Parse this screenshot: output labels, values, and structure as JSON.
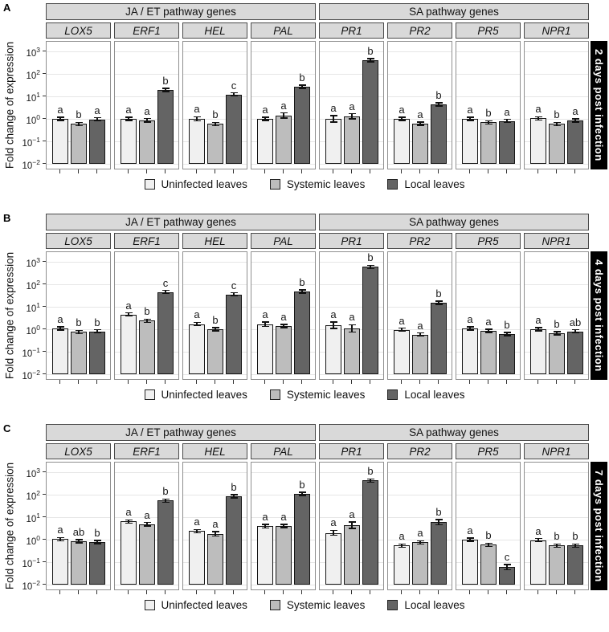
{
  "chart_data": {
    "type": "bar",
    "yscale": "log",
    "ylim": [
      0.01,
      3000
    ],
    "ylabel": "Fold change of expression",
    "ytick_exponents": [
      3,
      2,
      1,
      0,
      -1,
      -2
    ],
    "grid": true,
    "legend_position": "bottom",
    "series": [
      {
        "name": "Uninfected leaves",
        "color": "#f0f0f0"
      },
      {
        "name": "Systemic leaves",
        "color": "#bdbdbd"
      },
      {
        "name": "Local leaves",
        "color": "#646464"
      }
    ],
    "gene_groups": [
      {
        "label": "JA / ET pathway genes",
        "genes": [
          "LOX5",
          "ERF1",
          "HEL",
          "PAL"
        ]
      },
      {
        "label": "SA pathway genes",
        "genes": [
          "PR1",
          "PR2",
          "PR5",
          "NPR1"
        ]
      }
    ],
    "panels": [
      {
        "label": "A",
        "strip": "2 days post infection",
        "facets": [
          {
            "gene": "LOX5",
            "values": [
              1.0,
              0.6,
              0.95
            ],
            "errors": [
              1.05,
              1.05,
              1.05
            ],
            "letters": [
              "a",
              "b",
              "a"
            ]
          },
          {
            "gene": "ERF1",
            "values": [
              1.0,
              0.85,
              19
            ],
            "errors": [
              1.15,
              1.2,
              1.08
            ],
            "letters": [
              "a",
              "a",
              "b"
            ]
          },
          {
            "gene": "HEL",
            "values": [
              1.0,
              0.6,
              12
            ],
            "errors": [
              1.25,
              1.15,
              1.08
            ],
            "letters": [
              "a",
              "b",
              "c"
            ]
          },
          {
            "gene": "PAL",
            "values": [
              1.0,
              1.4,
              27
            ],
            "errors": [
              1.15,
              1.3,
              1.08
            ],
            "letters": [
              "a",
              "a",
              "b"
            ]
          },
          {
            "gene": "PR1",
            "values": [
              1.0,
              1.3,
              400
            ],
            "errors": [
              1.4,
              1.3,
              1.12
            ],
            "letters": [
              "a",
              "a",
              "b"
            ]
          },
          {
            "gene": "PR2",
            "values": [
              1.0,
              0.62,
              4.4
            ],
            "errors": [
              1.08,
              1.1,
              1.15
            ],
            "letters": [
              "a",
              "a",
              "b"
            ]
          },
          {
            "gene": "PR5",
            "values": [
              1.0,
              0.7,
              0.8
            ],
            "errors": [
              1.05,
              1.05,
              1.05
            ],
            "letters": [
              "a",
              "b",
              "a"
            ]
          },
          {
            "gene": "NPR1",
            "values": [
              1.05,
              0.6,
              0.85
            ],
            "errors": [
              1.06,
              1.05,
              1.05
            ],
            "letters": [
              "a",
              "b",
              "a"
            ]
          }
        ]
      },
      {
        "label": "B",
        "strip": "4 days post infection",
        "facets": [
          {
            "gene": "LOX5",
            "values": [
              1.1,
              0.75,
              0.8
            ],
            "errors": [
              1.06,
              1.06,
              1.05
            ],
            "letters": [
              "a",
              "b",
              "b"
            ]
          },
          {
            "gene": "ERF1",
            "values": [
              4.5,
              2.4,
              45
            ],
            "errors": [
              1.18,
              1.18,
              1.15
            ],
            "letters": [
              "a",
              "b",
              "c"
            ]
          },
          {
            "gene": "HEL",
            "values": [
              1.7,
              1.0,
              35
            ],
            "errors": [
              1.2,
              1.1,
              1.12
            ],
            "letters": [
              "a",
              "b",
              "c"
            ]
          },
          {
            "gene": "PAL",
            "values": [
              1.7,
              1.4,
              47
            ],
            "errors": [
              1.25,
              1.18,
              1.15
            ],
            "letters": [
              "a",
              "a",
              "b"
            ]
          },
          {
            "gene": "PR1",
            "values": [
              1.5,
              1.1,
              600
            ],
            "errors": [
              1.4,
              1.45,
              1.15
            ],
            "letters": [
              "a",
              "a",
              "b"
            ]
          },
          {
            "gene": "PR2",
            "values": [
              0.95,
              0.58,
              15
            ],
            "errors": [
              1.08,
              1.15,
              1.18
            ],
            "letters": [
              "a",
              "a",
              "b"
            ]
          },
          {
            "gene": "PR5",
            "values": [
              1.1,
              0.85,
              0.62
            ],
            "errors": [
              1.05,
              1.06,
              1.08
            ],
            "letters": [
              "a",
              "a",
              "b"
            ]
          },
          {
            "gene": "NPR1",
            "values": [
              1.0,
              0.67,
              0.8
            ],
            "errors": [
              1.05,
              1.07,
              1.05
            ],
            "letters": [
              "a",
              "b",
              "ab"
            ]
          }
        ]
      },
      {
        "label": "C",
        "strip": "7 days post infection",
        "facets": [
          {
            "gene": "LOX5",
            "values": [
              1.05,
              0.85,
              0.78
            ],
            "errors": [
              1.06,
              1.08,
              1.06
            ],
            "letters": [
              "a",
              "ab",
              "b"
            ]
          },
          {
            "gene": "ERF1",
            "values": [
              6.4,
              4.8,
              54
            ],
            "errors": [
              1.15,
              1.2,
              1.12
            ],
            "letters": [
              "a",
              "a",
              "b"
            ]
          },
          {
            "gene": "HEL",
            "values": [
              2.4,
              1.8,
              85
            ],
            "errors": [
              1.15,
              1.25,
              1.08
            ],
            "letters": [
              "a",
              "a",
              "b"
            ]
          },
          {
            "gene": "PAL",
            "values": [
              4.0,
              4.0,
              110
            ],
            "errors": [
              1.2,
              1.18,
              1.12
            ],
            "letters": [
              "a",
              "a",
              "b"
            ]
          },
          {
            "gene": "PR1",
            "values": [
              2.0,
              4.4,
              430
            ],
            "errors": [
              1.3,
              1.4,
              1.12
            ],
            "letters": [
              "a",
              "a",
              "b"
            ]
          },
          {
            "gene": "PR2",
            "values": [
              0.55,
              0.75,
              6.0
            ],
            "errors": [
              1.08,
              1.08,
              1.3
            ],
            "letters": [
              "a",
              "a",
              "b"
            ]
          },
          {
            "gene": "PR5",
            "values": [
              1.0,
              0.6,
              0.06
            ],
            "errors": [
              1.05,
              1.05,
              1.3
            ],
            "letters": [
              "a",
              "b",
              "c"
            ]
          },
          {
            "gene": "NPR1",
            "values": [
              0.95,
              0.55,
              0.55
            ],
            "errors": [
              1.05,
              1.05,
              1.05
            ],
            "letters": [
              "a",
              "b",
              "b"
            ]
          }
        ]
      }
    ]
  },
  "colors": {
    "header_bg": "#d9d9d9",
    "header_border": "#4a4a4a",
    "panel_border": "#8f8f8f",
    "gridline": "#e6e6e6",
    "bar_border": "#151515",
    "time_strip_bg": "#000000",
    "time_strip_text": "#ffffff"
  }
}
